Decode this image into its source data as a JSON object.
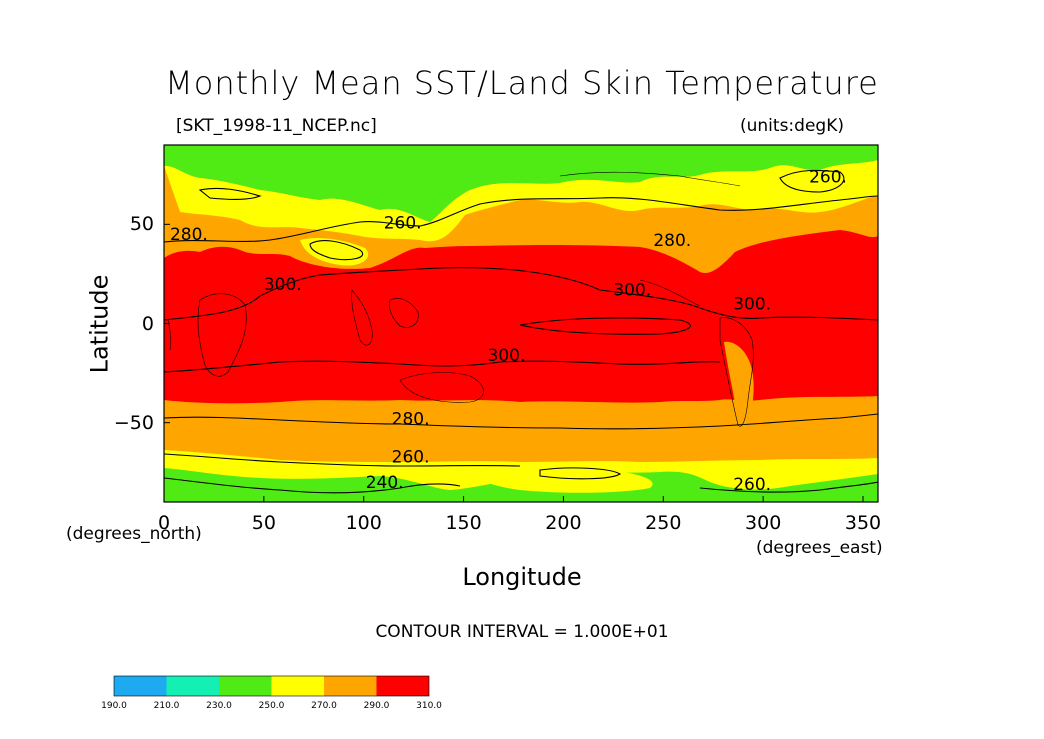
{
  "header": {
    "title": "Monthly Mean SST/Land Skin Temperature",
    "file_name": "[SKT_1998-11_NCEP.nc]",
    "units": "(units:degK)"
  },
  "axes": {
    "x_label": "Longitude",
    "y_label": "Latitude",
    "x_unit_note": "(degrees_east)",
    "y_unit_note": "(degrees_north)",
    "x_ticks": [
      {
        "value": 0,
        "label": "0"
      },
      {
        "value": 50,
        "label": "50"
      },
      {
        "value": 100,
        "label": "100"
      },
      {
        "value": 150,
        "label": "150"
      },
      {
        "value": 200,
        "label": "200"
      },
      {
        "value": 250,
        "label": "250"
      },
      {
        "value": 300,
        "label": "300"
      },
      {
        "value": 350,
        "label": "350"
      }
    ],
    "y_ticks": [
      {
        "value": 50,
        "label": "50"
      },
      {
        "value": 0,
        "label": "0"
      },
      {
        "value": -50,
        "label": "−50"
      }
    ],
    "x_range": [
      0,
      357.5
    ],
    "y_range": [
      -90,
      90
    ]
  },
  "contour_interval": "CONTOUR INTERVAL = 1.000E+01",
  "contour_labels": [
    {
      "text": "280.",
      "lon": 3,
      "lat": 42
    },
    {
      "text": "260.",
      "lon": 110,
      "lat": 48
    },
    {
      "text": "300.",
      "lon": 50,
      "lat": 17
    },
    {
      "text": "280.",
      "lon": 245,
      "lat": 39
    },
    {
      "text": "300.",
      "lon": 225,
      "lat": 14
    },
    {
      "text": "300.",
      "lon": 285,
      "lat": 7
    },
    {
      "text": "300.",
      "lon": 162,
      "lat": -19
    },
    {
      "text": "260.",
      "lon": 323,
      "lat": 71
    },
    {
      "text": "280.",
      "lon": 114,
      "lat": -51
    },
    {
      "text": "260.",
      "lon": 114,
      "lat": -70
    },
    {
      "text": "240.",
      "lon": 101,
      "lat": -83
    },
    {
      "text": "260.",
      "lon": 285,
      "lat": -84
    }
  ],
  "colorbar": {
    "ticks": [
      "190.0",
      "210.0",
      "230.0",
      "250.0",
      "270.0",
      "290.0",
      "310.0"
    ],
    "colors": [
      "#1EAAF0",
      "#14F0B4",
      "#50EB14",
      "#FFFF00",
      "#FFA500",
      "#FF0000"
    ]
  },
  "field_colors": {
    "green": "#50EB14",
    "yellow": "#FFFF00",
    "orange": "#FFA500",
    "red": "#FF0000"
  }
}
